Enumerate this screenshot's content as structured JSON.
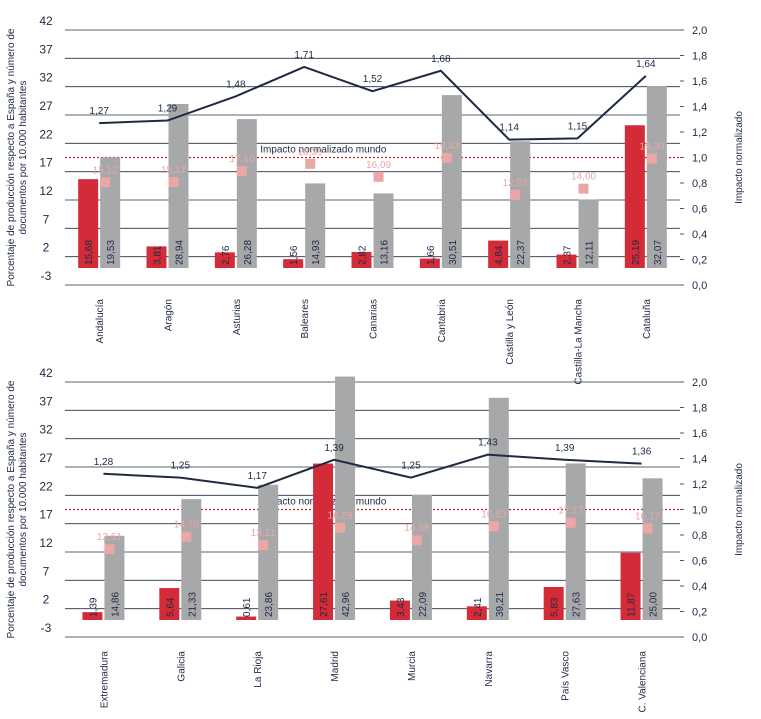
{
  "chart_data": [
    {
      "type": "bar",
      "ylabel": [
        "Porcentaje de producción respecto a España y número de",
        "documentos por 10.000 habitantes"
      ],
      "y2label": "Impacto normalizado",
      "categories": [
        "Andalucía",
        "Aragón",
        "Asturias",
        "Baleares",
        "Canarias",
        "Cantabria",
        "Castilla y León",
        "Castilla-La Mancha",
        "Cataluña"
      ],
      "ylim": [
        -3,
        42
      ],
      "yticks": [
        42,
        37,
        32,
        27,
        22,
        17,
        12,
        7,
        2,
        -3
      ],
      "y2lim": [
        0,
        2
      ],
      "y2ticks": [
        {
          "value": 2,
          "label": "2,0"
        },
        {
          "value": 1.8,
          "label": "1,8"
        },
        {
          "value": 1.6,
          "label": "1,6"
        },
        {
          "value": 1.4,
          "label": "1,4"
        },
        {
          "value": 1.2,
          "label": "1,2"
        },
        {
          "value": 1,
          "label": "1,0"
        },
        {
          "value": 0.8,
          "label": "0,8"
        },
        {
          "value": 0.6,
          "label": "0,6"
        },
        {
          "value": 0.4,
          "label": "0,4"
        },
        {
          "value": 0.2,
          "label": "0,2"
        },
        {
          "value": 0,
          "label": "0,0"
        }
      ],
      "grid": true,
      "reference": {
        "value": 1,
        "label": "Impacto normalizado mundo",
        "color": "#c0202e",
        "axis": "y2"
      },
      "series": [
        {
          "type": "bar",
          "color": "#d42b38",
          "values": [
            15.68,
            3.81,
            2.76,
            1.56,
            2.82,
            1.66,
            4.84,
            2.37,
            25.19
          ],
          "value_labels": [
            "15,68",
            "3,81",
            "2,76",
            "1,56",
            "2,82",
            "1,66",
            "4,84",
            "2,37",
            "25,19"
          ]
        },
        {
          "type": "bar",
          "color": "#a7a8aa",
          "values": [
            19.53,
            28.94,
            26.28,
            14.93,
            13.16,
            30.51,
            22.37,
            12.11,
            32.07
          ],
          "value_labels": [
            "19,53",
            "28,94",
            "26,28",
            "14,93",
            "13,16",
            "30,51",
            "22,37",
            "12,11",
            "32,07"
          ]
        },
        {
          "type": "marker",
          "color": "#eaa7a5",
          "values": [
            15.12,
            15.17,
            17.1,
            18.39,
            16.09,
            19.43,
            12.92,
            14.0,
            19.3
          ],
          "value_labels": [
            "15,12",
            "15,17",
            "17,10",
            "18,39",
            "16,09",
            "19,43",
            "12,92",
            "14,00",
            "19,30"
          ]
        },
        {
          "type": "line",
          "axis": "y2",
          "color": "#1f2944",
          "values": [
            1.27,
            1.29,
            1.48,
            1.71,
            1.52,
            1.68,
            1.14,
            1.15,
            1.64
          ],
          "value_labels": [
            "1,27",
            "1,29",
            "1,48",
            "1,71",
            "1,52",
            "1,68",
            "1,14",
            "1,15",
            "1,64"
          ]
        }
      ]
    },
    {
      "type": "bar",
      "ylabel": [
        "Porcentaje de producción respecto a España y número de",
        "documentos por 10.000 habitantes"
      ],
      "y2label": "Impacto normalizado",
      "categories": [
        "Extremadura",
        "Galicia",
        "La Rioja",
        "Madrid",
        "Murcia",
        "Navarra",
        "País Vasco",
        "C. Valenciana"
      ],
      "ylim": [
        -3,
        42
      ],
      "yticks": [
        42,
        37,
        32,
        27,
        22,
        17,
        12,
        7,
        2,
        -3
      ],
      "y2lim": [
        0,
        2
      ],
      "y2ticks": [
        {
          "value": 2,
          "label": "2,0"
        },
        {
          "value": 1.8,
          "label": "1,8"
        },
        {
          "value": 1.6,
          "label": "1,6"
        },
        {
          "value": 1.4,
          "label": "1,4"
        },
        {
          "value": 1.2,
          "label": "1,2"
        },
        {
          "value": 1,
          "label": "1,0"
        },
        {
          "value": 0.8,
          "label": "0,8"
        },
        {
          "value": 0.6,
          "label": "0,6"
        },
        {
          "value": 0.4,
          "label": "0,4"
        },
        {
          "value": 0.2,
          "label": "0,2"
        },
        {
          "value": 0,
          "label": "0,0"
        }
      ],
      "grid": true,
      "reference": {
        "value": 1,
        "label": "Impacto normalizado mundo",
        "color": "#c0202e",
        "axis": "y2"
      },
      "series": [
        {
          "type": "bar",
          "color": "#d42b38",
          "values": [
            1.39,
            5.64,
            0.61,
            27.61,
            3.43,
            2.41,
            5.83,
            11.87
          ],
          "value_labels": [
            "1,39",
            "5,64",
            "0,61",
            "27,61",
            "3,43",
            "2,41",
            "5,83",
            "11,87"
          ]
        },
        {
          "type": "bar",
          "color": "#a7a8aa",
          "values": [
            14.86,
            21.33,
            23.86,
            42.96,
            22.09,
            39.21,
            27.63,
            25.0
          ],
          "value_labels": [
            "14,86",
            "21,33",
            "23,86",
            "42,96",
            "22,09",
            "39,21",
            "27,63",
            "25,00"
          ]
        },
        {
          "type": "marker",
          "color": "#eaa7a5",
          "values": [
            12.51,
            14.7,
            13.21,
            16.29,
            14.08,
            16.53,
            17.17,
            16.17
          ],
          "value_labels": [
            "12,51",
            "14,70",
            "13,21",
            "16,29",
            "14,08",
            "16,53",
            "17,17",
            "16,17"
          ]
        },
        {
          "type": "line",
          "axis": "y2",
          "color": "#1f2944",
          "values": [
            1.28,
            1.25,
            1.17,
            1.39,
            1.25,
            1.43,
            1.39,
            1.36
          ],
          "value_labels": [
            "1,28",
            "1,25",
            "1,17",
            "1,39",
            "1,25",
            "1,43",
            "1,39",
            "1,36"
          ]
        }
      ]
    }
  ]
}
